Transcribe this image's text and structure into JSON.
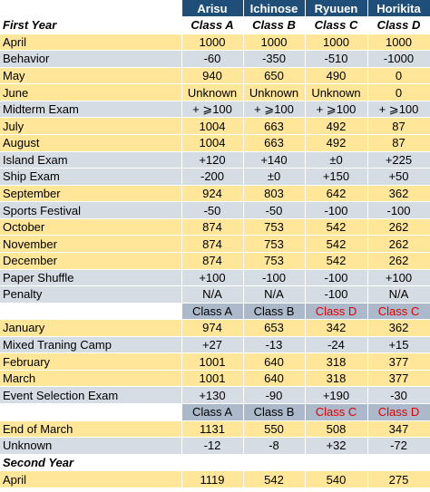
{
  "header": {
    "label": "",
    "cols": [
      "Arisu",
      "Ichinose",
      "Ryuuen",
      "Horikita"
    ]
  },
  "rows": [
    {
      "type": "section",
      "label": "First Year",
      "values": [
        "Class A",
        "Class B",
        "Class C",
        "Class D"
      ]
    },
    {
      "type": "yellow",
      "label": "April",
      "values": [
        "1000",
        "1000",
        "1000",
        "1000"
      ]
    },
    {
      "type": "gray",
      "label": "Behavior",
      "values": [
        "-60",
        "-350",
        "-510",
        "-1000"
      ]
    },
    {
      "type": "yellow",
      "label": "May",
      "values": [
        "940",
        "650",
        "490",
        "0"
      ]
    },
    {
      "type": "yellow",
      "label": "June",
      "values": [
        "Unknown",
        "Unknown",
        "Unknown",
        "0"
      ]
    },
    {
      "type": "gray",
      "label": "Midterm Exam",
      "values": [
        "+ ⩾100",
        "+ ⩾100",
        "+ ⩾100",
        "+ ⩾100"
      ]
    },
    {
      "type": "yellow",
      "label": "July",
      "values": [
        "1004",
        "663",
        "492",
        "87"
      ]
    },
    {
      "type": "yellow",
      "label": "August",
      "values": [
        "1004",
        "663",
        "492",
        "87"
      ]
    },
    {
      "type": "gray",
      "label": "Island Exam",
      "values": [
        "+120",
        "+140",
        "±0",
        "+225"
      ]
    },
    {
      "type": "gray",
      "label": "Ship Exam",
      "values": [
        "-200",
        "±0",
        "+150",
        "+50"
      ]
    },
    {
      "type": "yellow",
      "label": "September",
      "values": [
        "924",
        "803",
        "642",
        "362"
      ]
    },
    {
      "type": "gray",
      "label": "Sports Festival",
      "values": [
        "-50",
        "-50",
        "-100",
        "-100"
      ]
    },
    {
      "type": "yellow",
      "label": "October",
      "values": [
        "874",
        "753",
        "542",
        "262"
      ]
    },
    {
      "type": "yellow",
      "label": "November",
      "values": [
        "874",
        "753",
        "542",
        "262"
      ]
    },
    {
      "type": "yellow",
      "label": "December",
      "values": [
        "874",
        "753",
        "542",
        "262"
      ]
    },
    {
      "type": "gray",
      "label": "Paper Shuffle",
      "values": [
        "+100",
        "-100",
        "-100",
        "+100"
      ]
    },
    {
      "type": "gray",
      "label": "Penalty",
      "values": [
        "N/A",
        "N/A",
        "-100",
        "N/A"
      ]
    },
    {
      "type": "classrow",
      "label": "",
      "values": [
        "Class A",
        "Class B",
        "Class D",
        "Class C"
      ],
      "red": [
        false,
        false,
        true,
        true
      ]
    },
    {
      "type": "yellow",
      "label": "January",
      "values": [
        "974",
        "653",
        "342",
        "362"
      ]
    },
    {
      "type": "gray",
      "label": "Mixed Traning Camp",
      "values": [
        "+27",
        "-13",
        "-24",
        "+15"
      ]
    },
    {
      "type": "yellow",
      "label": "February",
      "values": [
        "1001",
        "640",
        "318",
        "377"
      ]
    },
    {
      "type": "yellow",
      "label": "March",
      "values": [
        "1001",
        "640",
        "318",
        "377"
      ]
    },
    {
      "type": "gray",
      "label": "Event Selection Exam",
      "values": [
        "+130",
        "-90",
        "+190",
        "-30"
      ]
    },
    {
      "type": "classrow",
      "label": "",
      "values": [
        "Class A",
        "Class B",
        "Class C",
        "Class D"
      ],
      "red": [
        false,
        false,
        true,
        true
      ]
    },
    {
      "type": "yellow",
      "label": "End of March",
      "values": [
        "1131",
        "550",
        "508",
        "347"
      ]
    },
    {
      "type": "gray",
      "label": "Unknown",
      "values": [
        "-12",
        "-8",
        "+32",
        "-72"
      ]
    },
    {
      "type": "section",
      "label": "Second Year",
      "values": [
        "",
        "",
        "",
        ""
      ]
    },
    {
      "type": "yellow",
      "label": "April",
      "values": [
        "1119",
        "542",
        "540",
        "275"
      ]
    }
  ]
}
